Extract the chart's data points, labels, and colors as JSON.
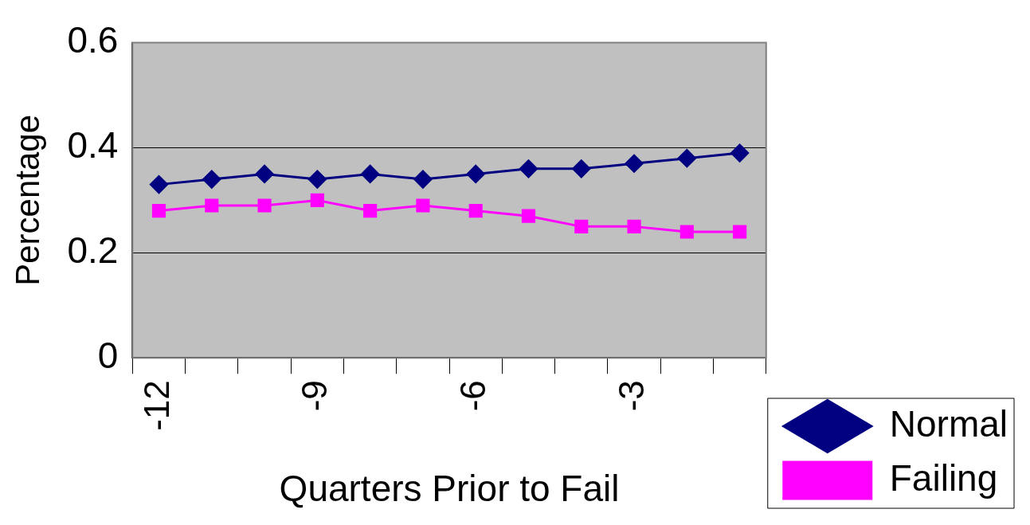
{
  "chart_data": {
    "type": "line",
    "xlabel": "Quarters Prior to Fail",
    "ylabel": "Percentage",
    "categories": [
      "-12",
      null,
      null,
      "-9",
      null,
      null,
      "-6",
      null,
      null,
      "-3",
      null,
      null
    ],
    "series": [
      {
        "name": "Normal",
        "color": "#000080",
        "marker": "diamond",
        "values": [
          0.33,
          0.34,
          0.35,
          0.34,
          0.35,
          0.34,
          0.35,
          0.36,
          0.36,
          0.37,
          0.38,
          0.39
        ]
      },
      {
        "name": "Failing",
        "color": "#ff00ff",
        "marker": "square",
        "values": [
          0.28,
          0.29,
          0.29,
          0.3,
          0.28,
          0.29,
          0.28,
          0.27,
          0.25,
          0.25,
          0.24,
          0.24
        ]
      }
    ],
    "ylim": [
      0,
      0.6
    ],
    "yticks": [
      0,
      0.2,
      0.4,
      0.6
    ],
    "grid": "y",
    "legend": "bottom right",
    "line_style": "solid"
  }
}
